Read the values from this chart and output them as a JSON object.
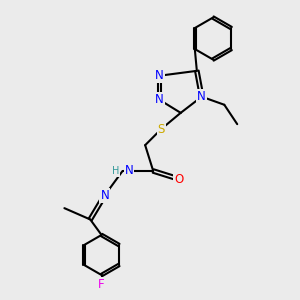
{
  "bg_color": "#ebebeb",
  "atom_colors": {
    "C": "#000000",
    "N": "#0000ff",
    "O": "#ff0000",
    "S": "#ccaa00",
    "F": "#ee00ee",
    "H": "#339999"
  },
  "bond_color": "#000000",
  "bond_width": 1.5,
  "font_size_atom": 8.5,
  "font_size_small": 7.0
}
